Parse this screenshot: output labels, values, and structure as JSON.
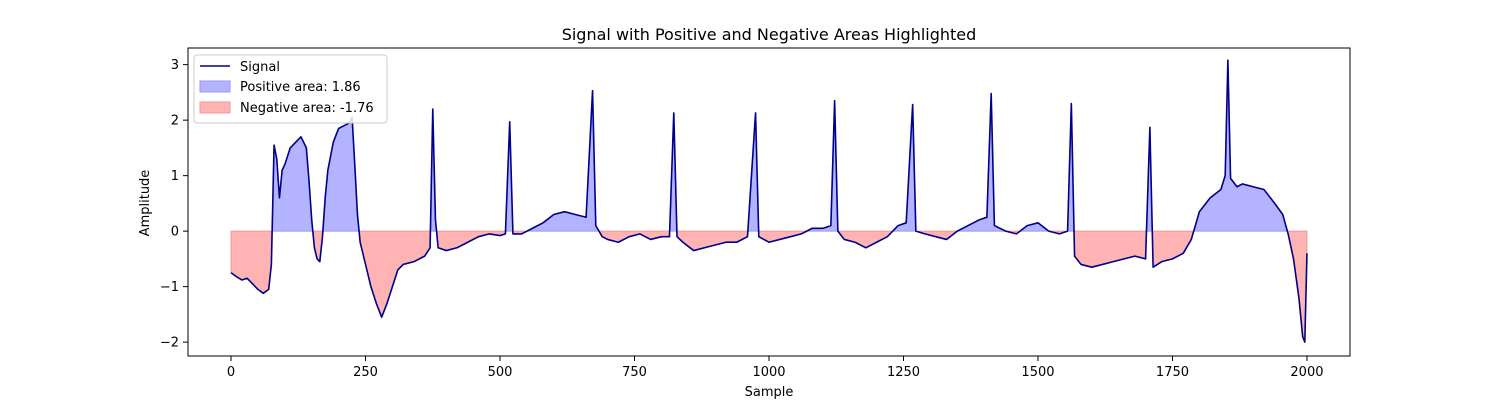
{
  "chart_data": {
    "type": "area",
    "title": "Signal with Positive and Negative Areas Highlighted",
    "xlabel": "Sample",
    "ylabel": "Amplitude",
    "xlim": [
      -80,
      2080
    ],
    "ylim": [
      -2.25,
      3.3
    ],
    "x_ticks": [
      0,
      250,
      500,
      750,
      1000,
      1250,
      1500,
      1750,
      2000
    ],
    "y_ticks": [
      -2,
      -1,
      0,
      1,
      2,
      3
    ],
    "grid": false,
    "legend_position": "top-left",
    "colors": {
      "signal": "#00008b",
      "positive_fill": "#b3b3ff",
      "positive_edge": "#9999f0",
      "negative_fill": "#ffb3b3",
      "negative_edge": "#f09999"
    },
    "legend": [
      {
        "label": "Signal",
        "kind": "line",
        "color": "#00008b"
      },
      {
        "label": "Positive area: 1.86",
        "kind": "patch",
        "color": "#b3b3ff"
      },
      {
        "label": "Negative area: -1.76",
        "kind": "patch",
        "color": "#ffb3b3"
      }
    ],
    "series": [
      {
        "name": "Signal",
        "points": [
          [
            0,
            -0.75
          ],
          [
            10,
            -0.82
          ],
          [
            20,
            -0.88
          ],
          [
            30,
            -0.85
          ],
          [
            40,
            -0.95
          ],
          [
            50,
            -1.05
          ],
          [
            60,
            -1.12
          ],
          [
            70,
            -1.05
          ],
          [
            75,
            -0.6
          ],
          [
            80,
            1.55
          ],
          [
            85,
            1.3
          ],
          [
            90,
            0.6
          ],
          [
            95,
            1.1
          ],
          [
            100,
            1.2
          ],
          [
            110,
            1.5
          ],
          [
            120,
            1.6
          ],
          [
            130,
            1.7
          ],
          [
            140,
            1.5
          ],
          [
            145,
            0.9
          ],
          [
            150,
            0.2
          ],
          [
            155,
            -0.3
          ],
          [
            160,
            -0.5
          ],
          [
            165,
            -0.55
          ],
          [
            170,
            -0.1
          ],
          [
            175,
            0.6
          ],
          [
            180,
            1.1
          ],
          [
            190,
            1.6
          ],
          [
            200,
            1.85
          ],
          [
            210,
            1.9
          ],
          [
            220,
            1.95
          ],
          [
            225,
            2.05
          ],
          [
            230,
            1.2
          ],
          [
            235,
            0.3
          ],
          [
            240,
            -0.2
          ],
          [
            250,
            -0.6
          ],
          [
            260,
            -1.0
          ],
          [
            270,
            -1.3
          ],
          [
            280,
            -1.55
          ],
          [
            290,
            -1.3
          ],
          [
            300,
            -1.0
          ],
          [
            310,
            -0.7
          ],
          [
            320,
            -0.6
          ],
          [
            340,
            -0.55
          ],
          [
            360,
            -0.45
          ],
          [
            370,
            -0.3
          ],
          [
            375,
            2.2
          ],
          [
            380,
            0.2
          ],
          [
            385,
            -0.3
          ],
          [
            400,
            -0.35
          ],
          [
            420,
            -0.3
          ],
          [
            440,
            -0.2
          ],
          [
            460,
            -0.1
          ],
          [
            480,
            -0.05
          ],
          [
            500,
            -0.08
          ],
          [
            510,
            -0.05
          ],
          [
            518,
            1.97
          ],
          [
            524,
            -0.05
          ],
          [
            540,
            -0.05
          ],
          [
            560,
            0.05
          ],
          [
            580,
            0.15
          ],
          [
            600,
            0.3
          ],
          [
            620,
            0.35
          ],
          [
            640,
            0.3
          ],
          [
            660,
            0.25
          ],
          [
            672,
            2.53
          ],
          [
            678,
            0.1
          ],
          [
            690,
            -0.1
          ],
          [
            700,
            -0.15
          ],
          [
            720,
            -0.2
          ],
          [
            740,
            -0.1
          ],
          [
            760,
            -0.05
          ],
          [
            780,
            -0.15
          ],
          [
            800,
            -0.1
          ],
          [
            815,
            -0.1
          ],
          [
            823,
            2.13
          ],
          [
            829,
            -0.1
          ],
          [
            840,
            -0.2
          ],
          [
            860,
            -0.35
          ],
          [
            880,
            -0.3
          ],
          [
            900,
            -0.25
          ],
          [
            920,
            -0.2
          ],
          [
            940,
            -0.2
          ],
          [
            960,
            -0.1
          ],
          [
            975,
            2.13
          ],
          [
            981,
            -0.1
          ],
          [
            1000,
            -0.2
          ],
          [
            1020,
            -0.15
          ],
          [
            1040,
            -0.1
          ],
          [
            1060,
            -0.05
          ],
          [
            1080,
            0.05
          ],
          [
            1100,
            0.05
          ],
          [
            1115,
            0.1
          ],
          [
            1122,
            2.35
          ],
          [
            1128,
            0.0
          ],
          [
            1140,
            -0.15
          ],
          [
            1160,
            -0.2
          ],
          [
            1180,
            -0.3
          ],
          [
            1200,
            -0.2
          ],
          [
            1220,
            -0.1
          ],
          [
            1240,
            0.1
          ],
          [
            1255,
            0.15
          ],
          [
            1267,
            2.28
          ],
          [
            1273,
            0.0
          ],
          [
            1290,
            -0.05
          ],
          [
            1310,
            -0.1
          ],
          [
            1330,
            -0.15
          ],
          [
            1350,
            0.0
          ],
          [
            1370,
            0.1
          ],
          [
            1390,
            0.2
          ],
          [
            1405,
            0.25
          ],
          [
            1413,
            2.48
          ],
          [
            1419,
            0.1
          ],
          [
            1440,
            0.0
          ],
          [
            1460,
            -0.05
          ],
          [
            1480,
            0.1
          ],
          [
            1500,
            0.15
          ],
          [
            1520,
            0.0
          ],
          [
            1540,
            -0.05
          ],
          [
            1555,
            0.0
          ],
          [
            1562,
            2.3
          ],
          [
            1568,
            -0.45
          ],
          [
            1580,
            -0.6
          ],
          [
            1600,
            -0.65
          ],
          [
            1620,
            -0.6
          ],
          [
            1640,
            -0.55
          ],
          [
            1660,
            -0.5
          ],
          [
            1680,
            -0.45
          ],
          [
            1700,
            -0.5
          ],
          [
            1708,
            1.87
          ],
          [
            1714,
            -0.65
          ],
          [
            1730,
            -0.55
          ],
          [
            1750,
            -0.5
          ],
          [
            1770,
            -0.4
          ],
          [
            1785,
            -0.15
          ],
          [
            1800,
            0.35
          ],
          [
            1820,
            0.6
          ],
          [
            1840,
            0.75
          ],
          [
            1848,
            1.0
          ],
          [
            1853,
            3.08
          ],
          [
            1858,
            0.95
          ],
          [
            1870,
            0.8
          ],
          [
            1880,
            0.85
          ],
          [
            1900,
            0.8
          ],
          [
            1920,
            0.75
          ],
          [
            1940,
            0.5
          ],
          [
            1955,
            0.3
          ],
          [
            1965,
            -0.05
          ],
          [
            1975,
            -0.5
          ],
          [
            1985,
            -1.2
          ],
          [
            1992,
            -1.9
          ],
          [
            1996,
            -2.0
          ],
          [
            2000,
            -0.4
          ]
        ]
      }
    ]
  }
}
